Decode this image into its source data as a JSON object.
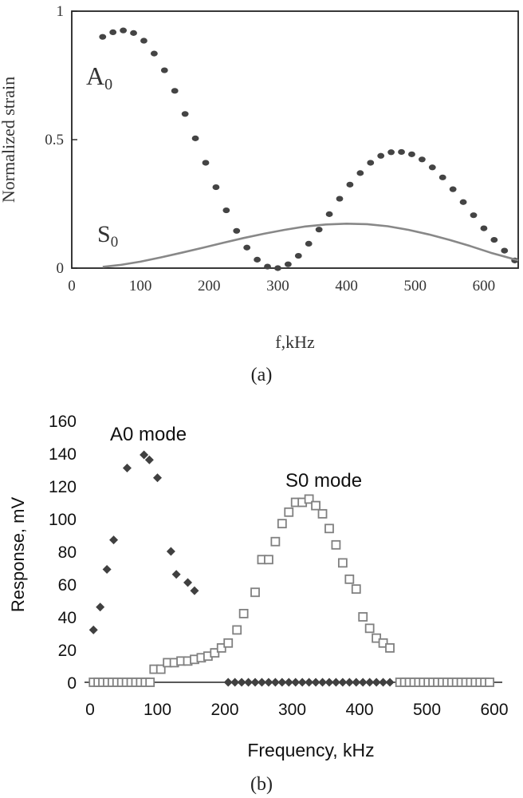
{
  "chart_data": [
    {
      "type": "scatter",
      "caption": "(a)",
      "xlabel": "f,kHz",
      "ylabel": "Normalized strain",
      "xlim": [
        0,
        650
      ],
      "ylim": [
        0,
        1
      ],
      "xticks": [
        "0",
        "100",
        "200",
        "300",
        "400",
        "500",
        "600"
      ],
      "yticks": [
        "0",
        "0.5",
        "1"
      ],
      "grid": false,
      "series": [
        {
          "name": "A0",
          "label_base": "A",
          "label_sub": "0",
          "style": "dotted",
          "color": "#444444",
          "x": [
            45,
            60,
            75,
            90,
            105,
            120,
            135,
            150,
            165,
            180,
            195,
            210,
            225,
            240,
            255,
            270,
            285,
            300,
            315,
            330,
            345,
            360,
            375,
            390,
            405,
            420,
            435,
            450,
            465,
            480,
            495,
            510,
            525,
            540,
            555,
            570,
            585,
            600,
            615,
            630,
            645
          ],
          "y": [
            0.9,
            0.918,
            0.925,
            0.915,
            0.885,
            0.835,
            0.77,
            0.69,
            0.6,
            0.505,
            0.41,
            0.315,
            0.225,
            0.145,
            0.08,
            0.033,
            0.006,
            0.0,
            0.015,
            0.048,
            0.095,
            0.15,
            0.21,
            0.27,
            0.325,
            0.37,
            0.41,
            0.437,
            0.451,
            0.452,
            0.443,
            0.423,
            0.392,
            0.353,
            0.307,
            0.257,
            0.206,
            0.155,
            0.11,
            0.068,
            0.03
          ]
        },
        {
          "name": "S0",
          "label_base": "S",
          "label_sub": "0",
          "style": "line",
          "color": "#888888",
          "x": [
            45,
            70,
            100,
            130,
            160,
            190,
            220,
            250,
            280,
            310,
            340,
            370,
            400,
            430,
            460,
            490,
            520,
            550,
            580,
            610,
            650
          ],
          "y": [
            0.005,
            0.012,
            0.025,
            0.042,
            0.06,
            0.079,
            0.098,
            0.117,
            0.134,
            0.149,
            0.162,
            0.17,
            0.173,
            0.171,
            0.163,
            0.149,
            0.131,
            0.11,
            0.086,
            0.06,
            0.03
          ]
        }
      ]
    },
    {
      "type": "scatter",
      "caption": "(b)",
      "xlabel": "Frequency, kHz",
      "ylabel": "Response, mV",
      "xlim": [
        0,
        600
      ],
      "ylim": [
        0,
        160
      ],
      "xticks": [
        "0",
        "100",
        "200",
        "300",
        "400",
        "500",
        "600"
      ],
      "yticks": [
        "0",
        "20",
        "40",
        "60",
        "80",
        "100",
        "120",
        "140",
        "160"
      ],
      "grid": false,
      "series": [
        {
          "name": "A0 mode",
          "marker": "diamond",
          "color": "#404040",
          "x": [
            5,
            15,
            25,
            35,
            55,
            80,
            88,
            100,
            120,
            128,
            145,
            155,
            205,
            215,
            225,
            235,
            245,
            255,
            265,
            275,
            285,
            295,
            305,
            315,
            325,
            335,
            345,
            355,
            365,
            375,
            385,
            395,
            405,
            415,
            425,
            435,
            445
          ],
          "y": [
            32,
            46,
            69,
            87,
            131,
            139,
            136,
            125,
            80,
            66,
            61,
            56,
            0,
            0,
            0,
            0,
            0,
            0,
            0,
            0,
            0,
            0,
            0,
            0,
            0,
            0,
            0,
            0,
            0,
            0,
            0,
            0,
            0,
            0,
            0,
            0,
            0
          ]
        },
        {
          "name": "S0 mode",
          "marker": "square",
          "color": "#808080",
          "x": [
            5,
            12,
            19,
            26,
            33,
            40,
            47,
            54,
            61,
            68,
            75,
            82,
            89,
            95,
            105,
            115,
            125,
            135,
            145,
            155,
            165,
            175,
            185,
            195,
            205,
            218,
            228,
            245,
            255,
            265,
            275,
            285,
            295,
            305,
            315,
            325,
            335,
            345,
            355,
            365,
            375,
            385,
            395,
            405,
            415,
            425,
            435,
            445,
            460,
            467,
            474,
            481,
            488,
            495,
            502,
            509,
            516,
            523,
            530,
            537,
            544,
            551,
            558,
            565,
            572,
            579,
            586,
            593
          ],
          "y": [
            0,
            0,
            0,
            0,
            0,
            0,
            0,
            0,
            0,
            0,
            0,
            0,
            0,
            8,
            8,
            12,
            12,
            13,
            13,
            14,
            15,
            16,
            18,
            21,
            24,
            32,
            42,
            55,
            75,
            75,
            86,
            97,
            104,
            110,
            110,
            112,
            108,
            103,
            94,
            84,
            73,
            63,
            57,
            40,
            33,
            27,
            24,
            21,
            0,
            0,
            0,
            0,
            0,
            0,
            0,
            0,
            0,
            0,
            0,
            0,
            0,
            0,
            0,
            0,
            0,
            0,
            0,
            0
          ]
        }
      ]
    }
  ]
}
